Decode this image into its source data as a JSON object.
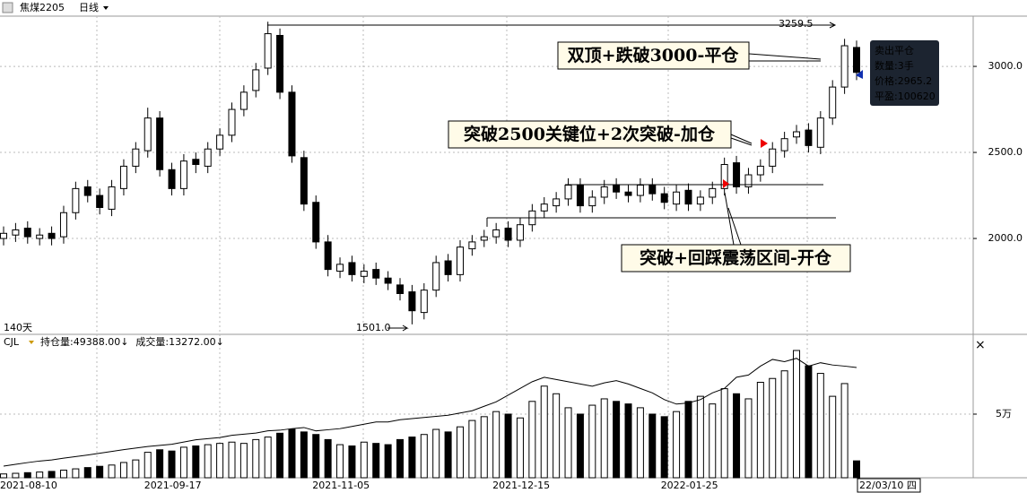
{
  "header": {
    "title": "焦煤2205",
    "period": "日线"
  },
  "chart_data": [
    {
      "type": "candlestick",
      "days_label": "140天",
      "categories": [
        "2021-08-10",
        null,
        null,
        null,
        null,
        null,
        null,
        null,
        null,
        null,
        null,
        null,
        "2021-09-17",
        null,
        null,
        null,
        null,
        null,
        null,
        null,
        null,
        null,
        null,
        null,
        null,
        null,
        "2021-11-05",
        null,
        null,
        null,
        null,
        null,
        null,
        null,
        null,
        null,
        null,
        null,
        null,
        null,
        null,
        "2021-12-15",
        null,
        null,
        null,
        null,
        null,
        null,
        null,
        null,
        null,
        null,
        null,
        null,
        null,
        "2022-01-25",
        null,
        null,
        null,
        null,
        null,
        null,
        null,
        null,
        null,
        null,
        null,
        null,
        null,
        null,
        null,
        "22/03/10 四"
      ],
      "open": [
        2000,
        2020,
        2060,
        2000,
        2030,
        2010,
        2150,
        2300,
        2250,
        2170,
        2290,
        2420,
        2510,
        2700,
        2400,
        2290,
        2460,
        2420,
        2520,
        2600,
        2750,
        2860,
        2990,
        3180,
        2850,
        2470,
        2210,
        1980,
        1810,
        1860,
        1780,
        1820,
        1770,
        1730,
        1690,
        1570,
        1700,
        1870,
        1790,
        1940,
        1990,
        2010,
        2060,
        1990,
        2080,
        2160,
        2190,
        2230,
        2310,
        2190,
        2240,
        2310,
        2270,
        2250,
        2310,
        2260,
        2200,
        2280,
        2200,
        2240,
        2290,
        2440,
        2300,
        2370,
        2420,
        2510,
        2590,
        2630,
        2530,
        2700,
        2880,
        3110
      ],
      "high": [
        2070,
        2090,
        2100,
        2060,
        2070,
        2190,
        2330,
        2340,
        2290,
        2340,
        2460,
        2560,
        2760,
        2740,
        2440,
        2490,
        2500,
        2560,
        2640,
        2790,
        2890,
        3020,
        3259.5,
        3220,
        2890,
        2510,
        2250,
        2020,
        1890,
        1900,
        1850,
        1860,
        1810,
        1770,
        1730,
        1740,
        1900,
        1910,
        1990,
        2020,
        2050,
        2090,
        2100,
        2120,
        2200,
        2240,
        2270,
        2350,
        2350,
        2280,
        2340,
        2350,
        2310,
        2350,
        2350,
        2300,
        2310,
        2320,
        2280,
        2330,
        2470,
        2480,
        2410,
        2460,
        2560,
        2620,
        2660,
        2670,
        2740,
        2920,
        3160,
        3150
      ],
      "low": [
        1960,
        1980,
        1970,
        1960,
        1960,
        1970,
        2110,
        2210,
        2140,
        2130,
        2250,
        2380,
        2470,
        2360,
        2250,
        2250,
        2380,
        2380,
        2480,
        2560,
        2710,
        2820,
        2950,
        2810,
        2440,
        2160,
        1940,
        1780,
        1770,
        1750,
        1740,
        1730,
        1700,
        1640,
        1501,
        1530,
        1660,
        1750,
        1750,
        1900,
        1950,
        1970,
        1950,
        1950,
        2040,
        2120,
        2150,
        2190,
        2150,
        2150,
        2200,
        2230,
        2210,
        2210,
        2220,
        2170,
        2160,
        2160,
        2160,
        2200,
        2250,
        2260,
        2260,
        2330,
        2380,
        2470,
        2550,
        2500,
        2490,
        2660,
        2840,
        2920
      ],
      "close": [
        2030,
        2050,
        2010,
        2020,
        2000,
        2150,
        2290,
        2250,
        2180,
        2300,
        2420,
        2520,
        2700,
        2400,
        2290,
        2450,
        2430,
        2520,
        2600,
        2750,
        2850,
        2980,
        3190,
        2850,
        2480,
        2200,
        1980,
        1820,
        1850,
        1790,
        1810,
        1770,
        1740,
        1680,
        1580,
        1700,
        1860,
        1790,
        1950,
        1980,
        2010,
        2050,
        1990,
        2080,
        2160,
        2200,
        2230,
        2310,
        2190,
        2240,
        2300,
        2270,
        2250,
        2310,
        2260,
        2210,
        2270,
        2200,
        2240,
        2290,
        2430,
        2300,
        2370,
        2420,
        2520,
        2580,
        2620,
        2540,
        2700,
        2880,
        3120,
        2965.2
      ],
      "ylim": [
        1443,
        3292
      ],
      "yticks": [
        {
          "value": 2000,
          "label": "2000.0"
        },
        {
          "value": 2500,
          "label": "2500.0"
        },
        {
          "value": 3000,
          "label": "3000.0"
        }
      ],
      "annotations": {
        "high_label": "3259.5",
        "low_label": "1501.0",
        "note_close": "双顶+跌破3000-平仓",
        "note_add": "突破2500关键位+2次突破-加仓",
        "note_open": "突破+回踩震荡区间-开仓"
      },
      "tooltip": [
        "卖出平仓",
        "数量:3手",
        "价格:2965.2",
        "平盈:100620"
      ]
    },
    {
      "type": "volume",
      "indicator": "CJL",
      "legend": [
        "持仓量:49388.00↓",
        "成交量:13272.00↓"
      ],
      "series": [
        {
          "name": "成交量",
          "values": [
            3000,
            3500,
            4000,
            4500,
            5000,
            6000,
            7000,
            8000,
            9000,
            10000,
            12000,
            14000,
            20000,
            22000,
            21000,
            24000,
            25000,
            26000,
            27000,
            28000,
            27000,
            30000,
            32000,
            35000,
            38000,
            36000,
            34000,
            30000,
            26000,
            25000,
            28000,
            27000,
            26000,
            30000,
            32000,
            34000,
            38000,
            36000,
            40000,
            45000,
            48000,
            52000,
            50000,
            47000,
            60000,
            72000,
            66000,
            55000,
            50000,
            57000,
            62000,
            60000,
            58000,
            55000,
            50000,
            48000,
            52000,
            60000,
            64000,
            58000,
            70000,
            66000,
            62000,
            75000,
            78000,
            84000,
            100000,
            88000,
            82000,
            64000,
            74000,
            13272
          ]
        },
        {
          "name": "持仓量",
          "axis": "y2",
          "values": [
            5200,
            6000,
            6800,
            7500,
            8000,
            8800,
            9500,
            10200,
            11000,
            11800,
            12600,
            13300,
            14000,
            14500,
            15000,
            16000,
            17000,
            17500,
            18000,
            19000,
            19500,
            20000,
            21000,
            21300,
            22000,
            22500,
            21000,
            21500,
            22000,
            23000,
            24000,
            25000,
            25000,
            26000,
            26500,
            27000,
            27500,
            28000,
            29000,
            30000,
            32000,
            34000,
            37000,
            40000,
            43000,
            45000,
            44000,
            43000,
            42000,
            41000,
            42500,
            43500,
            42000,
            40000,
            38000,
            35000,
            33000,
            33500,
            35000,
            38000,
            40000,
            45000,
            46000,
            50000,
            53000,
            52000,
            53500,
            50000,
            51500,
            50500,
            50000,
            49388
          ]
        }
      ],
      "ylim": [
        0,
        100700
      ],
      "y2lim": [
        0,
        57400
      ],
      "yticks": [
        {
          "value": 50000,
          "label": "5万"
        }
      ]
    }
  ]
}
